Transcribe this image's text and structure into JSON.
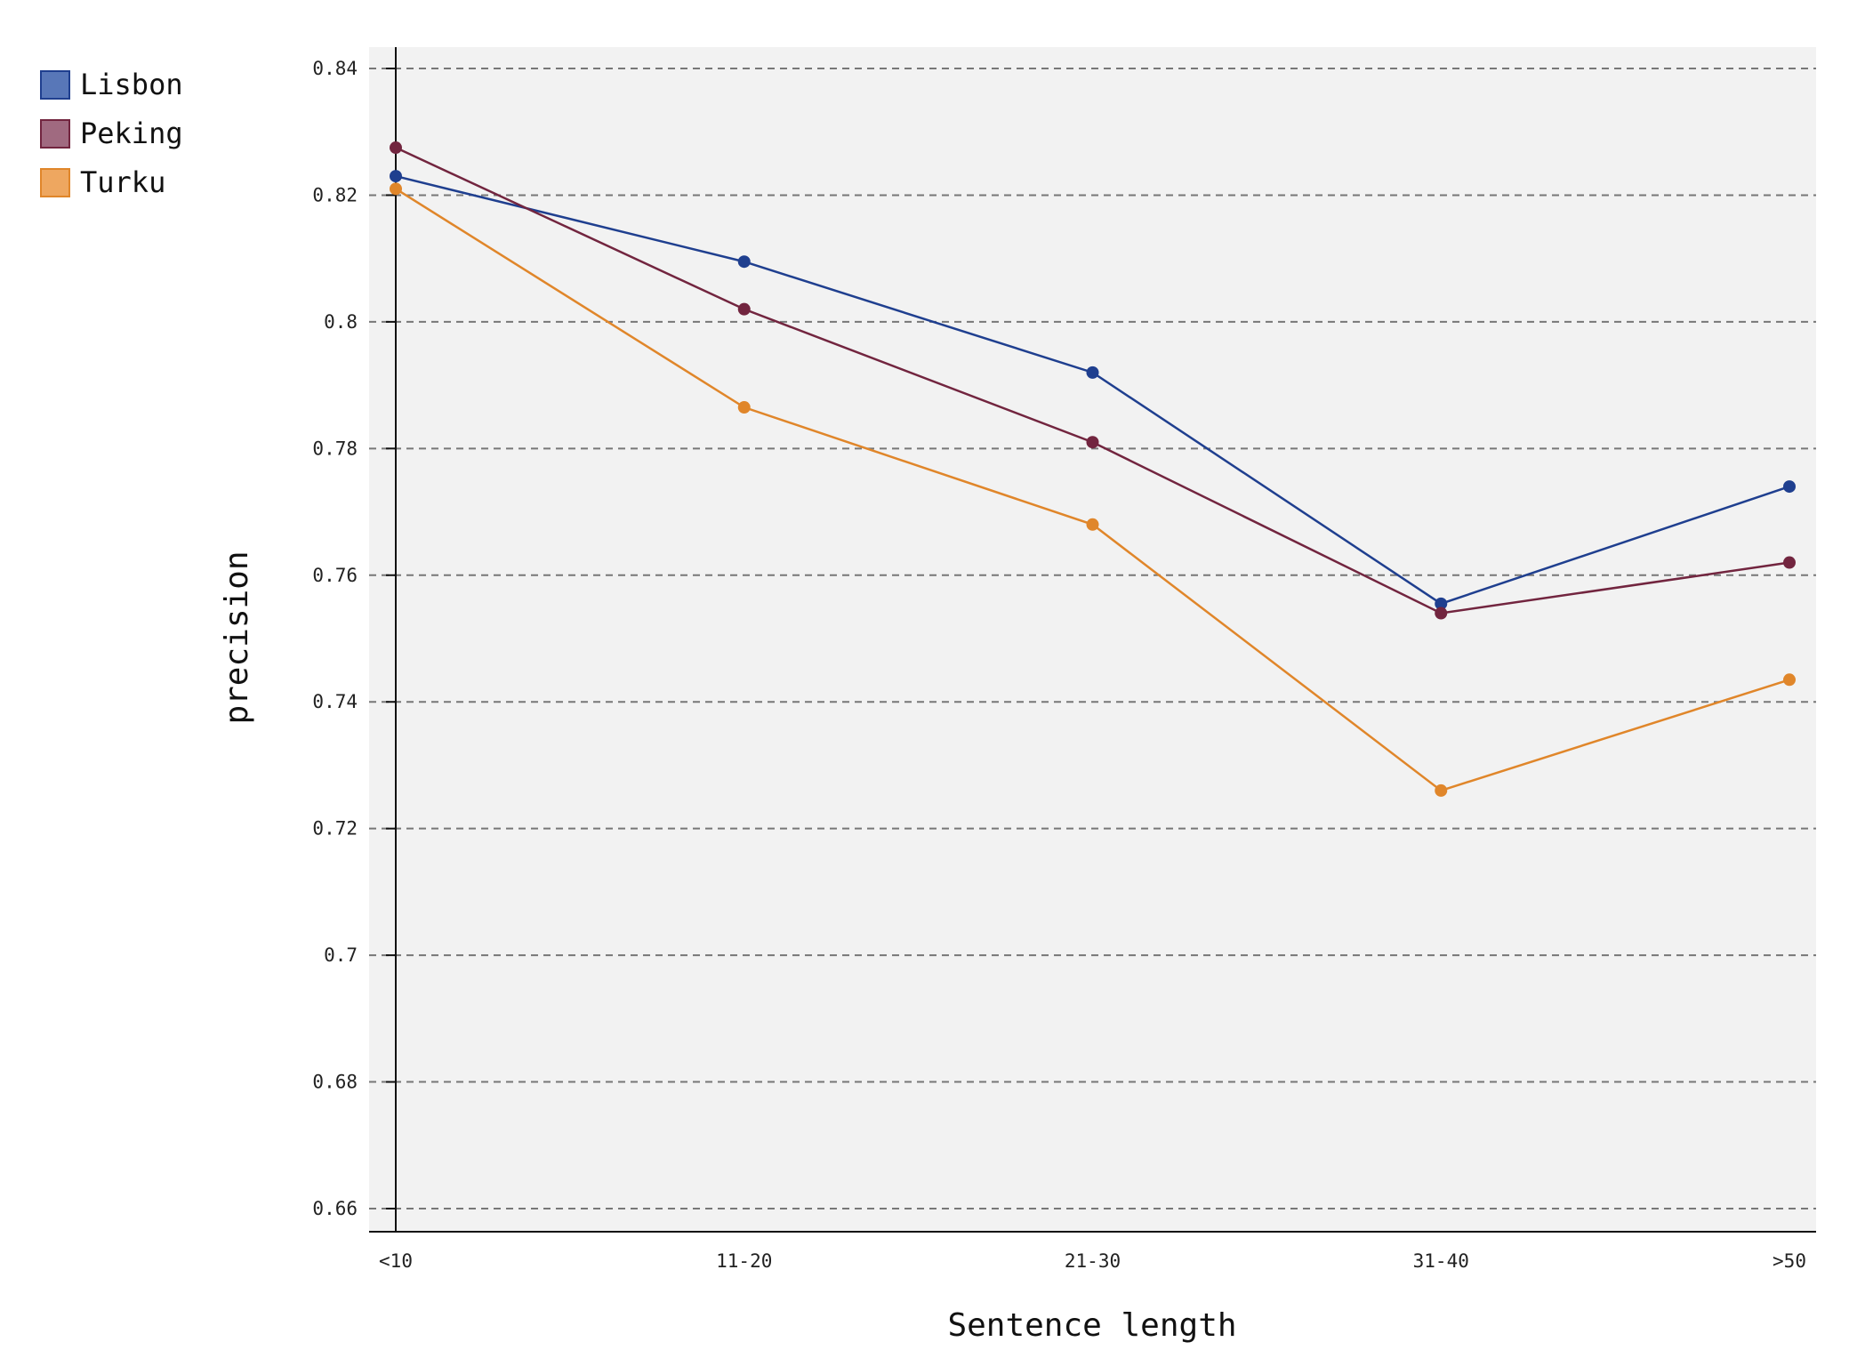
{
  "chart_data": {
    "type": "line",
    "title": "",
    "xlabel": "Sentence length",
    "ylabel": "precision",
    "categories": [
      "<10",
      "11-20",
      "21-30",
      "31-40",
      ">50"
    ],
    "ylim": [
      0.66,
      0.84
    ],
    "yticks": [
      "0.66",
      "0.68",
      "0.7",
      "0.72",
      "0.74",
      "0.76",
      "0.78",
      "0.8",
      "0.82",
      "0.84"
    ],
    "grid": "horizontal dashed",
    "legend_position": "top-left",
    "series": [
      {
        "name": "Lisbon",
        "color": "#1f3f8f",
        "swatch": "#5877b8",
        "values": [
          0.823,
          0.8095,
          0.792,
          0.7555,
          0.774
        ]
      },
      {
        "name": "Peking",
        "color": "#72253f",
        "swatch": "#a06a80",
        "values": [
          0.8275,
          0.802,
          0.781,
          0.754,
          0.762
        ]
      },
      {
        "name": "Turku",
        "color": "#e0862a",
        "swatch": "#eea760",
        "values": [
          0.821,
          0.7865,
          0.768,
          0.726,
          0.7435
        ]
      }
    ]
  }
}
